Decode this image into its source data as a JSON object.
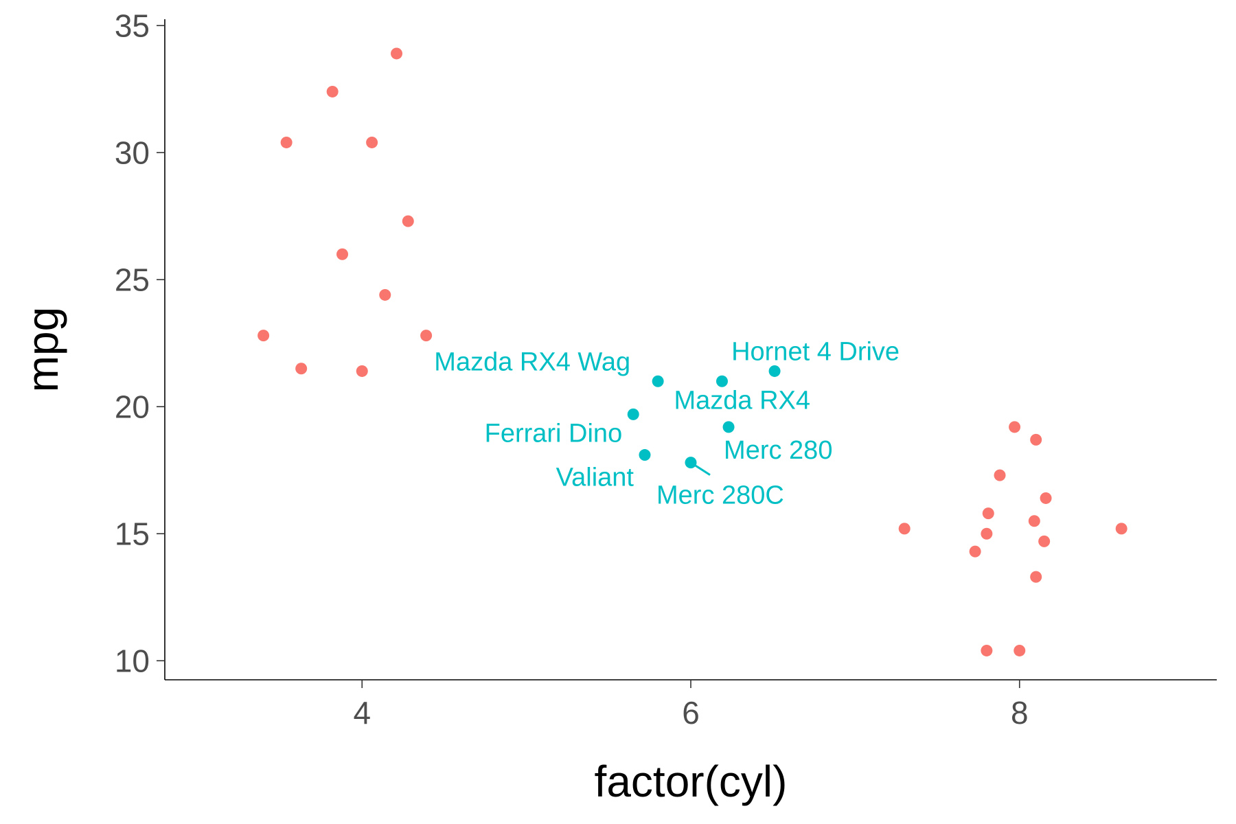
{
  "chart_data": {
    "type": "scatter",
    "title": "",
    "xlabel": "factor(cyl)",
    "ylabel": "mpg",
    "xlim": [
      2.8,
      9.2
    ],
    "ylim": [
      9.25,
      35.25
    ],
    "x_ticks": [
      4,
      6,
      8
    ],
    "y_ticks": [
      10,
      15,
      20,
      25,
      30,
      35
    ],
    "grid": false,
    "legend": "none",
    "colors": {
      "red": "#F8766D",
      "cyan": "#00BFC4"
    },
    "series": [
      {
        "color": "#F8766D",
        "points": [
          {
            "x": 4.21,
            "y": 33.9
          },
          {
            "x": 3.82,
            "y": 32.4
          },
          {
            "x": 3.54,
            "y": 30.4
          },
          {
            "x": 4.06,
            "y": 30.4
          },
          {
            "x": 4.28,
            "y": 27.3
          },
          {
            "x": 3.88,
            "y": 26.0
          },
          {
            "x": 4.14,
            "y": 24.4
          },
          {
            "x": 3.4,
            "y": 22.8
          },
          {
            "x": 4.39,
            "y": 22.8
          },
          {
            "x": 3.63,
            "y": 21.5
          },
          {
            "x": 4.0,
            "y": 21.4
          },
          {
            "x": 7.97,
            "y": 19.2
          },
          {
            "x": 8.1,
            "y": 18.7
          },
          {
            "x": 7.88,
            "y": 17.3
          },
          {
            "x": 8.16,
            "y": 16.4
          },
          {
            "x": 7.81,
            "y": 15.8
          },
          {
            "x": 8.09,
            "y": 15.5
          },
          {
            "x": 7.3,
            "y": 15.2
          },
          {
            "x": 8.62,
            "y": 15.2
          },
          {
            "x": 7.8,
            "y": 15.0
          },
          {
            "x": 8.15,
            "y": 14.7
          },
          {
            "x": 7.73,
            "y": 14.3
          },
          {
            "x": 8.1,
            "y": 13.3
          },
          {
            "x": 7.8,
            "y": 10.4
          },
          {
            "x": 8.0,
            "y": 10.4
          }
        ]
      },
      {
        "color": "#00BFC4",
        "points": [
          {
            "x": 6.19,
            "y": 21.0,
            "label": "Mazda RX4"
          },
          {
            "x": 5.8,
            "y": 21.0,
            "label": "Mazda RX4 Wag"
          },
          {
            "x": 6.51,
            "y": 21.4,
            "label": "Hornet 4 Drive"
          },
          {
            "x": 5.72,
            "y": 18.1,
            "label": "Valiant"
          },
          {
            "x": 6.23,
            "y": 19.2,
            "label": "Merc 280"
          },
          {
            "x": 6.0,
            "y": 17.8,
            "label": "Merc 280C"
          },
          {
            "x": 5.65,
            "y": 19.7,
            "label": "Ferrari Dino"
          }
        ]
      }
    ]
  }
}
